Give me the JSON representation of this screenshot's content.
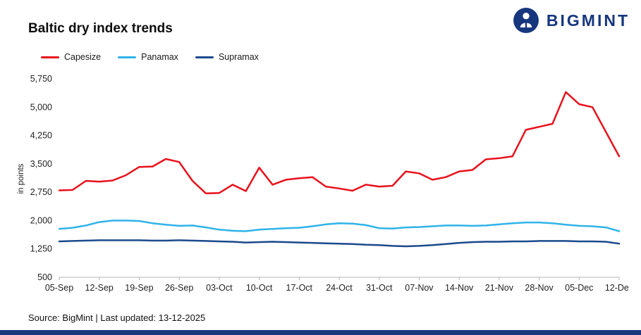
{
  "header": {
    "title": "Baltic dry index trends",
    "brand": "BIGMINT"
  },
  "footer": {
    "source_text": "Source: BigMint | Last updated: 13-12-2025"
  },
  "colors": {
    "capesize_red": "#e8111c",
    "panamax_cyan": "#2fb3e8",
    "supramax_navy": "#1b4a8c",
    "brand_navy": "#16377e",
    "axis_gray": "#b3b3b3"
  },
  "chart_data": {
    "type": "line",
    "title": "Baltic dry index trends",
    "xlabel": "",
    "ylabel": "in points",
    "ylim": [
      500,
      5750
    ],
    "grid": false,
    "legend_position": "top-left",
    "y_ticks": [
      "500",
      "1,250",
      "2,000",
      "2,750",
      "3,500",
      "4,250",
      "5,000",
      "5,750"
    ],
    "x_ticks": [
      "05-Sep",
      "12-Sep",
      "19-Sep",
      "26-Sep",
      "03-Oct",
      "10-Oct",
      "17-Oct",
      "24-Oct",
      "31-Oct",
      "07-Nov",
      "14-Nov",
      "21-Nov",
      "28-Nov",
      "05-Dec",
      "12-Dec"
    ],
    "points_per_tick": 3,
    "series": [
      {
        "name": "Capesize",
        "color": "#e8111c",
        "values": [
          2800,
          2810,
          3050,
          3030,
          3060,
          3200,
          3420,
          3430,
          3630,
          3550,
          3050,
          2720,
          2730,
          2950,
          2780,
          3400,
          2950,
          3080,
          3120,
          3150,
          2900,
          2850,
          2790,
          2950,
          2900,
          2920,
          3300,
          3250,
          3080,
          3150,
          3300,
          3340,
          3620,
          3650,
          3700,
          4400,
          4480,
          4560,
          5400,
          5080,
          5000,
          4350,
          3700
        ]
      },
      {
        "name": "Panamax",
        "color": "#2fb3e8",
        "values": [
          1780,
          1810,
          1870,
          1960,
          2000,
          2000,
          1990,
          1930,
          1890,
          1860,
          1870,
          1820,
          1760,
          1730,
          1720,
          1760,
          1780,
          1800,
          1810,
          1850,
          1900,
          1930,
          1920,
          1880,
          1800,
          1790,
          1820,
          1830,
          1850,
          1870,
          1870,
          1860,
          1870,
          1900,
          1930,
          1950,
          1950,
          1930,
          1890,
          1860,
          1850,
          1820,
          1720
        ]
      },
      {
        "name": "Supramax",
        "color": "#1b4a8c",
        "values": [
          1450,
          1460,
          1470,
          1480,
          1480,
          1480,
          1480,
          1470,
          1470,
          1480,
          1470,
          1460,
          1450,
          1440,
          1420,
          1430,
          1440,
          1430,
          1420,
          1410,
          1400,
          1390,
          1380,
          1360,
          1350,
          1330,
          1320,
          1330,
          1350,
          1380,
          1410,
          1430,
          1440,
          1440,
          1450,
          1450,
          1460,
          1460,
          1460,
          1450,
          1450,
          1440,
          1390
        ]
      }
    ]
  }
}
